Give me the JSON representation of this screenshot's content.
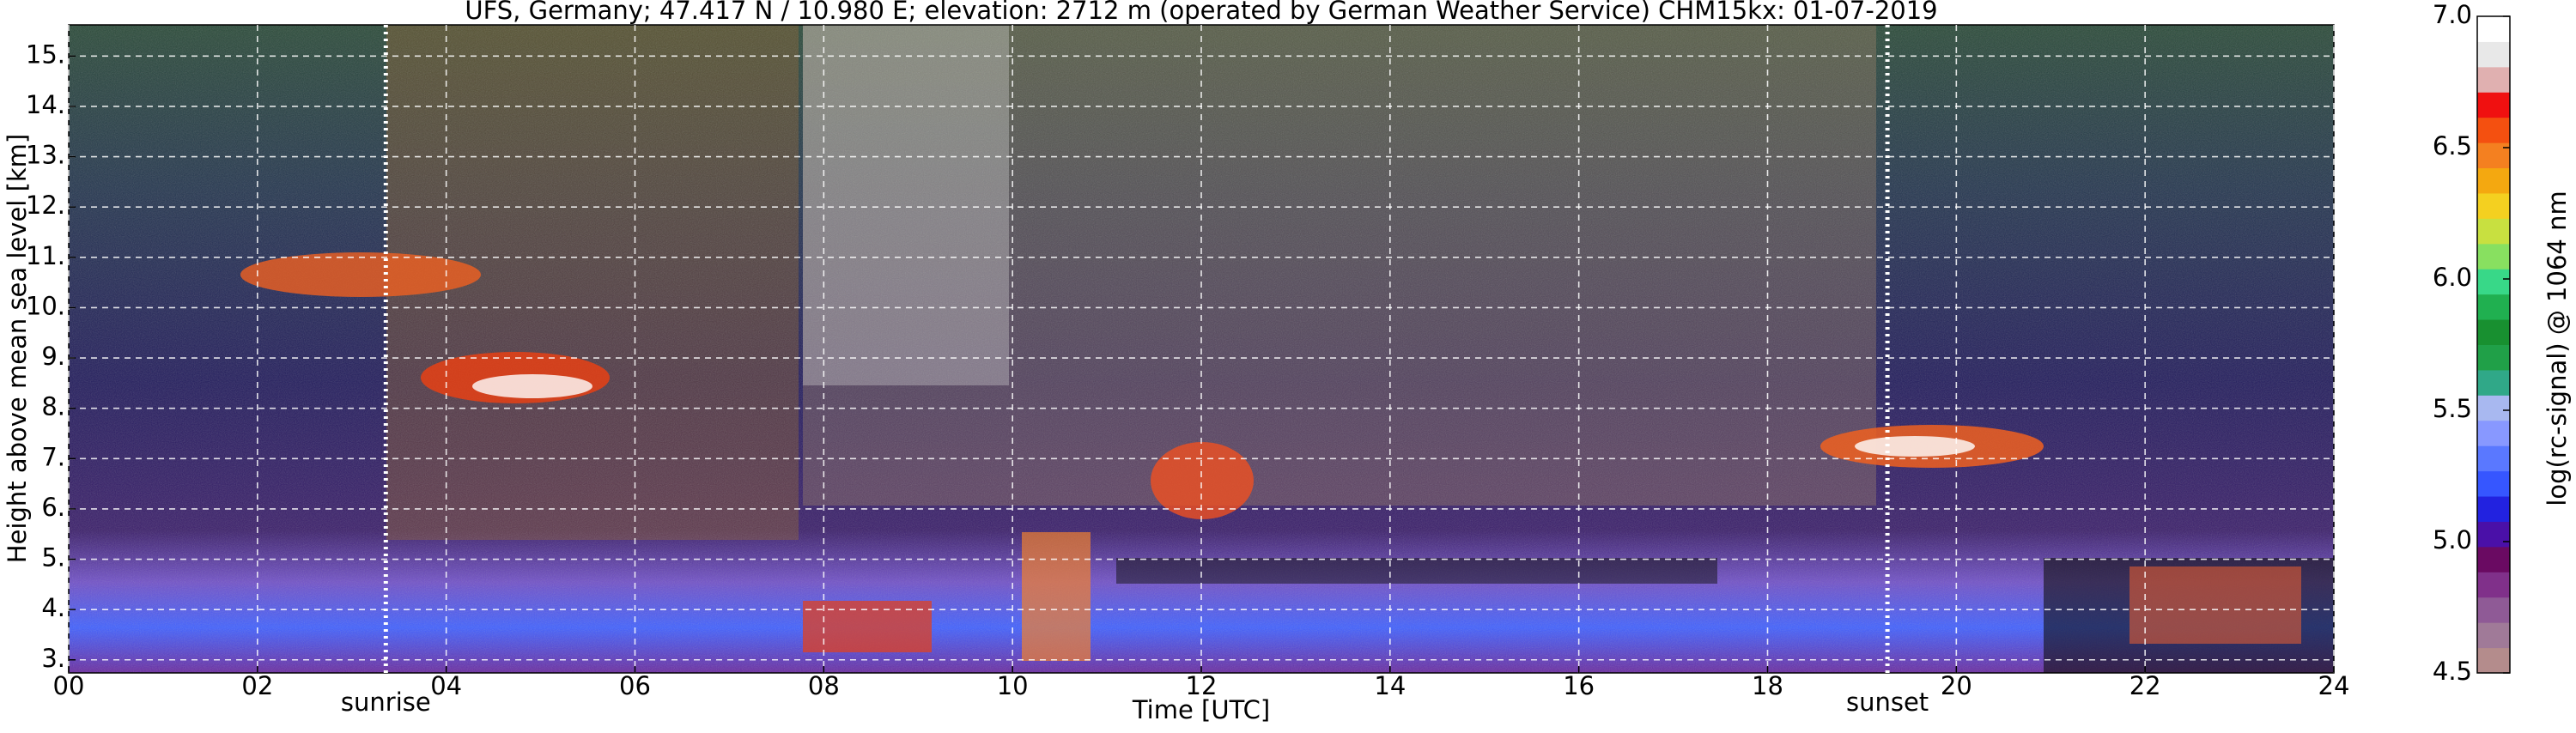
{
  "chart_data": {
    "type": "heatmap",
    "title": "UFS, Germany; 47.417 N / 10.980 E; elevation: 2712 m  (operated by German Weather Service)    CHM15kx: 01-07-2019",
    "x_label": "Time [UTC]",
    "y_label": "Height above mean sea level [km]",
    "xlim": [
      0,
      24
    ],
    "xticks": [
      {
        "value": 0,
        "label": "00"
      },
      {
        "value": 2,
        "label": "02"
      },
      {
        "value": 4,
        "label": "04"
      },
      {
        "value": 6,
        "label": "06"
      },
      {
        "value": 8,
        "label": "08"
      },
      10,
      12,
      14,
      16,
      18,
      20,
      22,
      24
    ],
    "ylim": [
      2.74,
      15.62
    ],
    "yticks": [
      {
        "value": 3,
        "label": "3."
      },
      {
        "value": 4,
        "label": "4."
      },
      {
        "value": 5,
        "label": "5."
      },
      {
        "value": 6,
        "label": "6."
      },
      {
        "value": 7,
        "label": "7."
      },
      {
        "value": 8,
        "label": "8."
      },
      {
        "value": 9,
        "label": "9."
      },
      {
        "value": 10,
        "label": "10."
      },
      {
        "value": 11,
        "label": "11."
      },
      {
        "value": 12,
        "label": "12."
      },
      {
        "value": 13,
        "label": "13."
      },
      {
        "value": 14,
        "label": "14."
      },
      {
        "value": 15,
        "label": "15."
      }
    ],
    "grid": true,
    "annotations": [
      {
        "text": "sunrise",
        "x": 3.36
      },
      {
        "text": "sunset",
        "x": 19.27
      }
    ],
    "colorbar": {
      "label": "log(rc-signal) @ 1064 nm",
      "lim": [
        4.5,
        7.0
      ],
      "ticks": [
        4.5,
        {
          "value": 5.0,
          "label": "5.0"
        },
        5.5,
        {
          "value": 6.0,
          "label": "6.0"
        },
        6.5,
        {
          "value": 7.0,
          "label": "7.0"
        }
      ],
      "colors": [
        "#b48c8c",
        "#a07a98",
        "#8f5a96",
        "#80308a",
        "#6a0a62",
        "#4a10a8",
        "#2222e0",
        "#3656ff",
        "#5a78ff",
        "#8898ff",
        "#a8b8f0",
        "#30a888",
        "#20a048",
        "#189030",
        "#20b050",
        "#38d888",
        "#88e060",
        "#c8e040",
        "#f4d020",
        "#f4a810",
        "#f48020",
        "#f45010",
        "#f01010",
        "#e0b0b0",
        "#e8e8e8",
        "#ffffff"
      ]
    }
  }
}
